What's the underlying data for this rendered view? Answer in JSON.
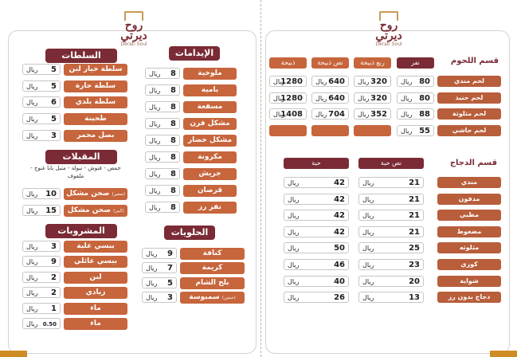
{
  "brand": {
    "name_ar": "روح ديرتي",
    "name_en": "Derati Soul"
  },
  "left_page": {
    "salads": {
      "title": "السلطات",
      "items": [
        {
          "name": "سلطة خيار لبن",
          "price": "5",
          "currency": "ريال"
        },
        {
          "name": "سلطة حارة",
          "price": "5",
          "currency": "ريال"
        },
        {
          "name": "سلطة بلدي",
          "price": "6",
          "currency": "ريال"
        },
        {
          "name": "طحينة",
          "price": "5",
          "currency": "ريال"
        },
        {
          "name": "بصل محمر",
          "price": "3",
          "currency": "ريال"
        }
      ]
    },
    "starters": {
      "title": "المقبلات",
      "description": "حمص - فتوش - تبولة - متبل بابا غنوج - ملفوف",
      "items": [
        {
          "name": "صحن مشكل",
          "note": "(صغير)",
          "price": "10",
          "currency": "ريال"
        },
        {
          "name": "صحن مشكل",
          "note": "(كبير)",
          "price": "15",
          "currency": "ريال"
        }
      ]
    },
    "drinks": {
      "title": "المشروبات",
      "items": [
        {
          "name": "ببسي علبة",
          "price": "3",
          "currency": "ريال"
        },
        {
          "name": "ببسي عائلي",
          "price": "9",
          "currency": "ريال"
        },
        {
          "name": "لبن",
          "price": "2",
          "currency": "ريال"
        },
        {
          "name": "زبادي",
          "price": "2",
          "currency": "ريال"
        },
        {
          "name": "ماء",
          "price": "1",
          "currency": "ريال"
        },
        {
          "name": "ماء",
          "price": "0.50",
          "currency": "ريال"
        }
      ]
    },
    "mains": {
      "title": "الإيدامات",
      "items": [
        {
          "name": "ملوخية",
          "price": "8",
          "currency": "ريال"
        },
        {
          "name": "بامية",
          "price": "8",
          "currency": "ريال"
        },
        {
          "name": "مسقعة",
          "price": "8",
          "currency": "ريال"
        },
        {
          "name": "مشكل فرن",
          "price": "8",
          "currency": "ريال"
        },
        {
          "name": "مشكل خضار",
          "price": "8",
          "currency": "ريال"
        },
        {
          "name": "مكرونة",
          "price": "8",
          "currency": "ريال"
        },
        {
          "name": "جريش",
          "price": "8",
          "currency": "ريال"
        },
        {
          "name": "قرصان",
          "price": "8",
          "currency": "ريال"
        },
        {
          "name": "نفر رز",
          "price": "8",
          "currency": "ريال"
        }
      ]
    },
    "desserts": {
      "title": "الحلويات",
      "items": [
        {
          "name": "كنافة",
          "price": "9",
          "currency": "ريال"
        },
        {
          "name": "كريمة",
          "price": "7",
          "currency": "ريال"
        },
        {
          "name": "بلح الشام",
          "price": "5",
          "currency": "ريال"
        },
        {
          "name": "سمبوسة",
          "note": "(حبتين)",
          "price": "3",
          "currency": "ريال"
        }
      ]
    }
  },
  "right_page": {
    "meat": {
      "title": "قسم اللحوم",
      "columns": [
        "نفر",
        "ربع ذبيحة",
        "نص ذبيحة",
        "ذبيحة"
      ],
      "currency": "ريال",
      "rows": [
        {
          "name": "لحم مندي",
          "prices": [
            "80",
            "320",
            "640",
            "1280"
          ]
        },
        {
          "name": "لحم حنيذ",
          "prices": [
            "80",
            "320",
            "640",
            "1280"
          ]
        },
        {
          "name": "لحم مثلوثة",
          "prices": [
            "88",
            "352",
            "704",
            "1408"
          ]
        },
        {
          "name": "لحم حاشي",
          "prices": [
            "55",
            "",
            "",
            ""
          ]
        }
      ]
    },
    "chicken": {
      "title": "قسم الدجاج",
      "columns": [
        "نص حبة",
        "حبة"
      ],
      "currency": "ريال",
      "rows": [
        {
          "name": "مندي",
          "half": "21",
          "full": "42"
        },
        {
          "name": "مدفون",
          "half": "21",
          "full": "42"
        },
        {
          "name": "مظبي",
          "half": "21",
          "full": "42"
        },
        {
          "name": "مضغوط",
          "half": "21",
          "full": "42"
        },
        {
          "name": "مثلوثه",
          "half": "25",
          "full": "50"
        },
        {
          "name": "كوزي",
          "half": "23",
          "full": "46"
        },
        {
          "name": "شواية",
          "half": "20",
          "full": "40"
        },
        {
          "name": "دجاج بدون رز",
          "half": "13",
          "full": "26"
        }
      ]
    }
  },
  "colors": {
    "maroon": "#7a2b35",
    "rust": "#c7653c",
    "gold": "#cf8c25"
  }
}
